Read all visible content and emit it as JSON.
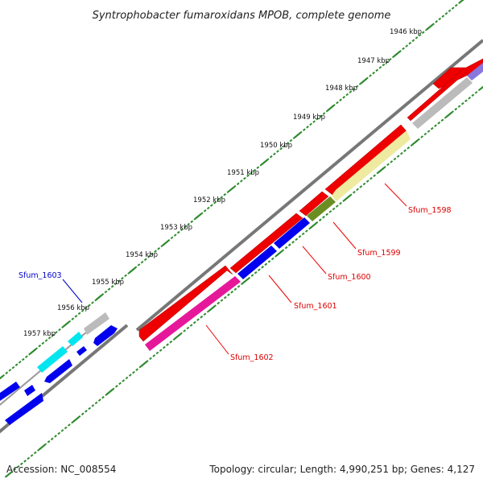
{
  "title": "Syntrophobacter fumaroxidans MPOB, complete genome",
  "footer": {
    "accession": "Accession: NC_008554",
    "summary": "Topology: circular; Length: 4,990,251 bp; Genes: 4,127"
  },
  "kbp_labels": [
    "1946 kbp",
    "1947 kbp",
    "1948 kbp",
    "1949 kbp",
    "1950 kbp",
    "1951 kbp",
    "1952 kbp",
    "1953 kbp",
    "1954 kbp",
    "1955 kbp",
    "1956 kbp",
    "1957 kbp"
  ],
  "gene_labels": [
    {
      "name": "Sfum_1598",
      "color": "#dd0000"
    },
    {
      "name": "Sfum_1599",
      "color": "#dd0000"
    },
    {
      "name": "Sfum_1600",
      "color": "#dd0000"
    },
    {
      "name": "Sfum_1601",
      "color": "#dd0000"
    },
    {
      "name": "Sfum_1602",
      "color": "#dd0000"
    },
    {
      "name": "Sfum_1603",
      "color": "#0000cc"
    }
  ],
  "colors": {
    "backbone": "#777777",
    "tick": "#2e8b2e",
    "red": "#ee0000",
    "blue": "#0000ee",
    "magenta": "#e6189a",
    "olive": "#6b8e23",
    "khaki": "#eeeaa0",
    "gray": "#bbbbbb",
    "cyan": "#00e5ee",
    "slate": "#8877dd"
  }
}
